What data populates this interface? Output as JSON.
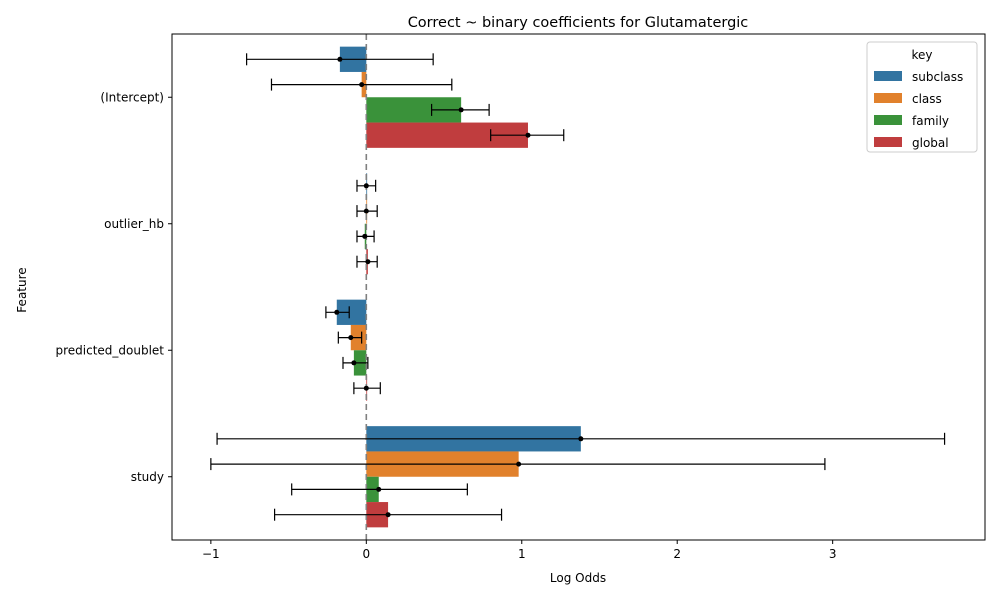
{
  "chart_data": {
    "type": "bar",
    "orientation": "horizontal",
    "title": "Correct ~ binary coefficients for Glutamatergic",
    "xlabel": "Log Odds",
    "ylabel": "Feature",
    "categories": [
      "(Intercept)",
      "outlier_hb",
      "predicted_doublet",
      "study"
    ],
    "xlim": [
      -1.25,
      3.98
    ],
    "xticks": [
      -1,
      0,
      1,
      2,
      3
    ],
    "xtick_labels": [
      "−1",
      "0",
      "1",
      "2",
      "3"
    ],
    "reference_line": 0,
    "legend": {
      "title": "key",
      "placement": "top-right"
    },
    "series": [
      {
        "name": "subclass",
        "color": "#3274a1",
        "values": [
          -0.17,
          0.0,
          -0.19,
          1.38
        ],
        "err_low": [
          -0.77,
          -0.06,
          -0.26,
          -0.96
        ],
        "err_high": [
          0.43,
          0.06,
          -0.11,
          3.72
        ]
      },
      {
        "name": "class",
        "color": "#e1812c",
        "values": [
          -0.03,
          0.0,
          -0.1,
          0.98
        ],
        "err_low": [
          -0.61,
          -0.06,
          -0.18,
          -1.0
        ],
        "err_high": [
          0.55,
          0.07,
          -0.03,
          2.95
        ]
      },
      {
        "name": "family",
        "color": "#3a923a",
        "values": [
          0.61,
          -0.01,
          -0.08,
          0.08
        ],
        "err_low": [
          0.42,
          -0.06,
          -0.15,
          -0.48
        ],
        "err_high": [
          0.79,
          0.05,
          0.01,
          0.65
        ]
      },
      {
        "name": "global",
        "color": "#c03d3e",
        "values": [
          1.04,
          0.01,
          0.0,
          0.14
        ],
        "err_low": [
          0.8,
          -0.06,
          -0.08,
          -0.59
        ],
        "err_high": [
          1.27,
          0.07,
          0.09,
          0.87
        ]
      }
    ]
  }
}
